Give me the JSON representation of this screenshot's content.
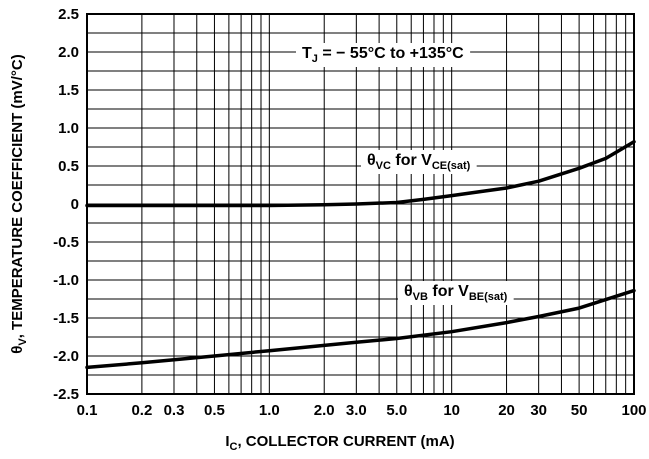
{
  "chart_data": {
    "type": "line",
    "xscale": "log",
    "xlim": [
      0.1,
      100
    ],
    "ylim": [
      -2.5,
      2.5
    ],
    "grid": true,
    "x_ticks": [
      {
        "v": 0.1,
        "label": "0.1"
      },
      {
        "v": 0.2,
        "label": "0.2"
      },
      {
        "v": 0.3,
        "label": "0.3"
      },
      {
        "v": 0.5,
        "label": "0.5"
      },
      {
        "v": 1.0,
        "label": "1.0"
      },
      {
        "v": 2.0,
        "label": "2.0"
      },
      {
        "v": 3.0,
        "label": "3.0"
      },
      {
        "v": 5.0,
        "label": "5.0"
      },
      {
        "v": 10,
        "label": "10"
      },
      {
        "v": 20,
        "label": "20"
      },
      {
        "v": 30,
        "label": "30"
      },
      {
        "v": 50,
        "label": "50"
      },
      {
        "v": 100,
        "label": "100"
      }
    ],
    "y_ticks": [
      {
        "v": 2.5,
        "label": "2.5"
      },
      {
        "v": 2.0,
        "label": "2.0"
      },
      {
        "v": 1.5,
        "label": "1.5"
      },
      {
        "v": 1.0,
        "label": "1.0"
      },
      {
        "v": 0.5,
        "label": "0.5"
      },
      {
        "v": 0,
        "label": "0"
      },
      {
        "v": -0.5,
        "label": "-0.5"
      },
      {
        "v": -1.0,
        "label": "-1.0"
      },
      {
        "v": -1.5,
        "label": "-1.5"
      },
      {
        "v": -2.0,
        "label": "-2.0"
      },
      {
        "v": -2.5,
        "label": "-2.5"
      }
    ],
    "xlabel": {
      "main": "I",
      "sub": "C",
      "rest": ", COLLECTOR CURRENT (mA)"
    },
    "ylabel": {
      "main": "θ",
      "sub": "V",
      "rest": ", TEMPERATURE COEFFICIENT (mV/°C)"
    },
    "annotation": {
      "main": "T",
      "sub": "J",
      "rest": " = − 55°C to +135°C"
    },
    "series": [
      {
        "name": {
          "a": "θ",
          "a_sub": "VC",
          "b": " for V",
          "b_sub": "CE(sat)"
        },
        "x": [
          0.1,
          0.2,
          0.5,
          1,
          2,
          3,
          5,
          7,
          10,
          15,
          20,
          30,
          50,
          70,
          100
        ],
        "y": [
          -0.02,
          -0.02,
          -0.02,
          -0.02,
          -0.01,
          0.0,
          0.02,
          0.06,
          0.11,
          0.17,
          0.21,
          0.3,
          0.47,
          0.6,
          0.82
        ]
      },
      {
        "name": {
          "a": "θ",
          "a_sub": "VB",
          "b": " for V",
          "b_sub": "BE(sat)"
        },
        "x": [
          0.1,
          0.2,
          0.5,
          1,
          2,
          3,
          5,
          10,
          20,
          30,
          50,
          100
        ],
        "y": [
          -2.15,
          -2.09,
          -2.0,
          -1.93,
          -1.86,
          -1.82,
          -1.77,
          -1.68,
          -1.56,
          -1.48,
          -1.37,
          -1.14
        ]
      }
    ]
  }
}
